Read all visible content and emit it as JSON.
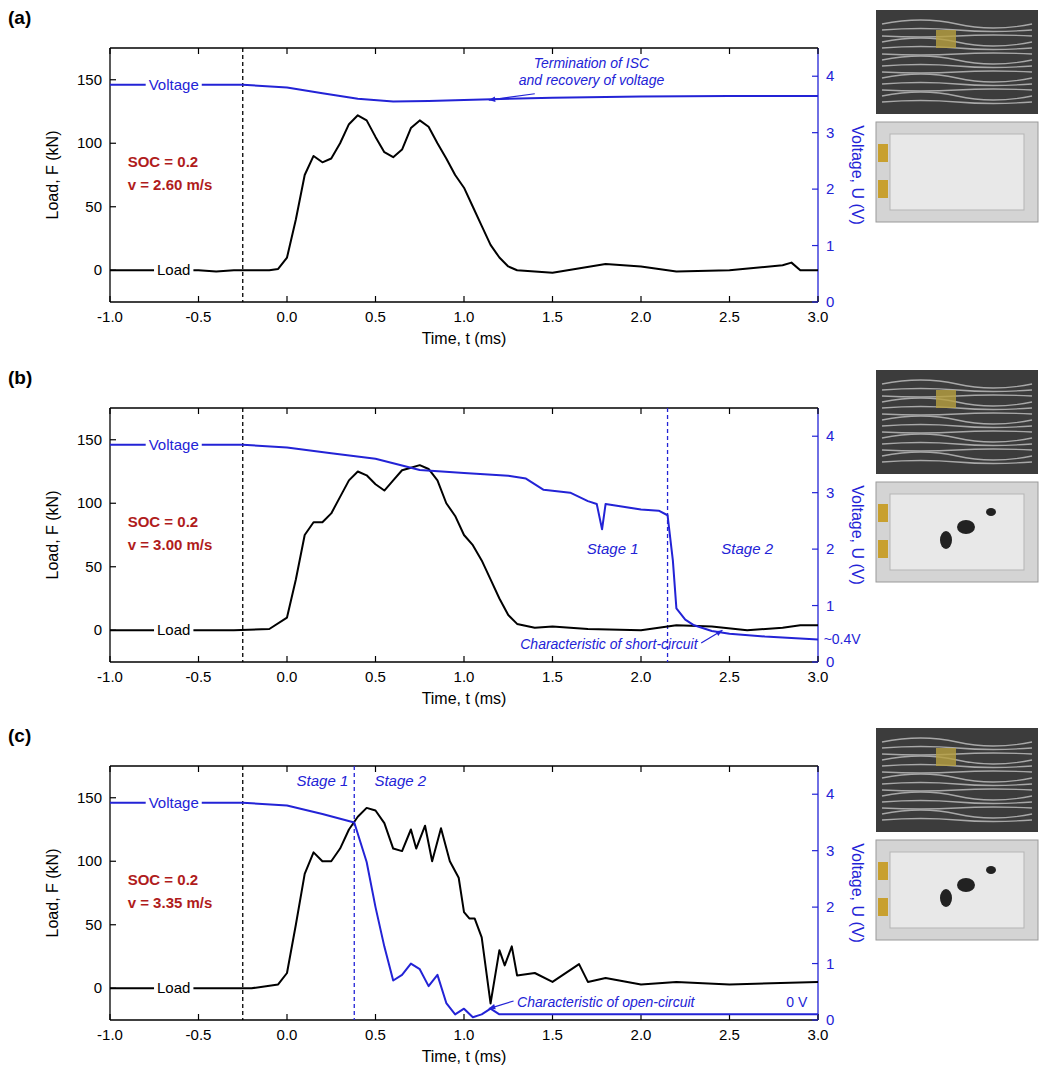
{
  "chart_data": [
    {
      "type": "line",
      "title": "(a)",
      "xlabel": "Time, t (ms)",
      "ylabel": "Load, F (kN)",
      "y2label": "Voltage, U (V)",
      "xlim": [
        -1,
        3
      ],
      "xticks": [
        {
          "value": -1,
          "label": "-1.0"
        },
        -0.5,
        {
          "value": 0,
          "label": "0.0"
        },
        0.5,
        {
          "value": 1,
          "label": "1.0"
        },
        1.5,
        {
          "value": 2,
          "label": "2.0"
        },
        2.5,
        {
          "value": 3,
          "label": "3.0"
        }
      ],
      "ylim": [
        -25,
        175
      ],
      "yticks": [
        0,
        50,
        100,
        150
      ],
      "y2lim": [
        0,
        4.5
      ],
      "y2ticks": [
        0,
        1,
        2,
        3,
        4
      ],
      "series": [
        {
          "name": "Load",
          "color": "#000000",
          "x": [
            -1,
            -0.5,
            -0.4,
            -0.3,
            -0.1,
            -0.05,
            0,
            0.05,
            0.1,
            0.15,
            0.2,
            0.25,
            0.3,
            0.35,
            0.4,
            0.45,
            0.5,
            0.55,
            0.6,
            0.65,
            0.7,
            0.75,
            0.8,
            0.85,
            0.9,
            0.95,
            1.0,
            1.05,
            1.1,
            1.15,
            1.2,
            1.25,
            1.3,
            1.5,
            1.8,
            2.0,
            2.2,
            2.5,
            2.8,
            2.85,
            2.9,
            3.0
          ],
          "values": [
            0,
            0,
            -1,
            0,
            0,
            1,
            10,
            40,
            75,
            90,
            85,
            88,
            100,
            115,
            122,
            118,
            105,
            93,
            89,
            95,
            112,
            118,
            113,
            100,
            88,
            75,
            65,
            50,
            35,
            20,
            10,
            3,
            0,
            -2,
            5,
            3,
            -1,
            0,
            4,
            6,
            0,
            0
          ]
        },
        {
          "name": "Voltage",
          "color": "#2323d6",
          "axis": "y2",
          "x": [
            -1,
            -0.25,
            0,
            0.2,
            0.4,
            0.6,
            0.8,
            1.0,
            1.5,
            2.0,
            2.5,
            3.0
          ],
          "values": [
            3.85,
            3.85,
            3.8,
            3.7,
            3.6,
            3.55,
            3.56,
            3.58,
            3.62,
            3.64,
            3.65,
            3.65
          ]
        }
      ],
      "vlines": [
        {
          "x": -0.25,
          "color": "#000000",
          "line_style": "dashed"
        }
      ],
      "annotations": [
        {
          "text": "SOC = 0.2",
          "color": "#b01c1c"
        },
        {
          "text": "v = 2.60 m/s",
          "color": "#b01c1c"
        },
        {
          "text": "Termination of ISC\nand recovery of voltage",
          "color": "#2323d6"
        }
      ]
    },
    {
      "type": "line",
      "title": "(b)",
      "xlabel": "Time, t (ms)",
      "ylabel": "Load, F (kN)",
      "y2label": "Voltage, U (V)",
      "xlim": [
        -1,
        3
      ],
      "xticks": [
        {
          "value": -1,
          "label": "-1.0"
        },
        -0.5,
        {
          "value": 0,
          "label": "0.0"
        },
        0.5,
        {
          "value": 1,
          "label": "1.0"
        },
        1.5,
        {
          "value": 2,
          "label": "2.0"
        },
        2.5,
        {
          "value": 3,
          "label": "3.0"
        }
      ],
      "ylim": [
        -25,
        175
      ],
      "yticks": [
        0,
        50,
        100,
        150
      ],
      "y2lim": [
        0,
        4.5
      ],
      "y2ticks": [
        0,
        1,
        2,
        3,
        4
      ],
      "series": [
        {
          "name": "Load",
          "color": "#000000",
          "x": [
            -1,
            -0.3,
            -0.1,
            0,
            0.05,
            0.1,
            0.15,
            0.2,
            0.25,
            0.3,
            0.35,
            0.4,
            0.45,
            0.5,
            0.55,
            0.6,
            0.65,
            0.7,
            0.75,
            0.8,
            0.85,
            0.9,
            0.95,
            1.0,
            1.05,
            1.1,
            1.15,
            1.2,
            1.25,
            1.3,
            1.4,
            1.5,
            1.7,
            2.0,
            2.2,
            2.4,
            2.6,
            2.8,
            2.9,
            3.0
          ],
          "values": [
            0,
            0,
            1,
            10,
            40,
            75,
            85,
            85,
            92,
            105,
            118,
            125,
            122,
            115,
            110,
            118,
            126,
            128,
            130,
            127,
            118,
            100,
            90,
            75,
            67,
            55,
            40,
            25,
            12,
            5,
            2,
            3,
            1,
            0,
            4,
            3,
            0,
            2,
            4,
            4
          ]
        },
        {
          "name": "Voltage",
          "color": "#2323d6",
          "axis": "y2",
          "x": [
            -1,
            -0.25,
            0,
            0.25,
            0.5,
            0.75,
            1.0,
            1.25,
            1.35,
            1.45,
            1.6,
            1.7,
            1.75,
            1.78,
            1.8,
            1.9,
            2.0,
            2.1,
            2.15,
            2.18,
            2.2,
            2.25,
            2.3,
            2.4,
            2.5,
            2.7,
            3.0
          ],
          "values": [
            3.85,
            3.85,
            3.8,
            3.7,
            3.6,
            3.4,
            3.35,
            3.3,
            3.25,
            3.05,
            3.0,
            2.85,
            2.8,
            2.35,
            2.8,
            2.75,
            2.7,
            2.68,
            2.6,
            1.8,
            0.95,
            0.75,
            0.65,
            0.55,
            0.5,
            0.45,
            0.4
          ]
        }
      ],
      "vlines": [
        {
          "x": -0.25,
          "color": "#000000",
          "line_style": "dashed"
        },
        {
          "x": 2.15,
          "color": "#2323d6",
          "line_style": "dashed"
        }
      ],
      "annotations": [
        {
          "text": "SOC = 0.2",
          "color": "#b01c1c"
        },
        {
          "text": "v = 3.00 m/s",
          "color": "#b01c1c"
        },
        {
          "text": "Stage 1",
          "color": "#2323d6"
        },
        {
          "text": "Stage 2",
          "color": "#2323d6"
        },
        {
          "text": "Characteristic of short-circuit",
          "color": "#2323d6"
        },
        {
          "text": "~0.4V",
          "color": "#2323d6"
        }
      ]
    },
    {
      "type": "line",
      "title": "(c)",
      "xlabel": "Time, t (ms)",
      "ylabel": "Load, F (kN)",
      "y2label": "Voltage, U (V)",
      "xlim": [
        -1,
        3
      ],
      "xticks": [
        {
          "value": -1,
          "label": "-1.0"
        },
        -0.5,
        {
          "value": 0,
          "label": "0.0"
        },
        0.5,
        {
          "value": 1,
          "label": "1.0"
        },
        1.5,
        {
          "value": 2,
          "label": "2.0"
        },
        2.5,
        {
          "value": 3,
          "label": "3.0"
        }
      ],
      "ylim": [
        -25,
        175
      ],
      "yticks": [
        0,
        50,
        100,
        150
      ],
      "y2lim": [
        0,
        4.5
      ],
      "y2ticks": [
        0,
        1,
        2,
        3,
        4
      ],
      "series": [
        {
          "name": "Load",
          "color": "#000000",
          "x": [
            -1,
            -0.2,
            -0.05,
            0,
            0.05,
            0.1,
            0.15,
            0.2,
            0.25,
            0.3,
            0.35,
            0.4,
            0.45,
            0.5,
            0.55,
            0.6,
            0.65,
            0.7,
            0.73,
            0.78,
            0.82,
            0.87,
            0.92,
            0.97,
            1.0,
            1.03,
            1.06,
            1.1,
            1.15,
            1.2,
            1.23,
            1.27,
            1.3,
            1.4,
            1.5,
            1.65,
            1.7,
            1.8,
            2.0,
            2.2,
            2.5,
            3.0
          ],
          "values": [
            0,
            0,
            3,
            12,
            50,
            90,
            107,
            100,
            100,
            110,
            125,
            135,
            142,
            140,
            130,
            110,
            108,
            125,
            110,
            128,
            100,
            126,
            100,
            87,
            60,
            55,
            55,
            40,
            -12,
            30,
            18,
            33,
            10,
            12,
            5,
            19,
            5,
            8,
            3,
            5,
            3,
            5
          ]
        },
        {
          "name": "Voltage",
          "color": "#2323d6",
          "axis": "y2",
          "x": [
            -1,
            -0.25,
            0,
            0.2,
            0.38,
            0.45,
            0.5,
            0.55,
            0.6,
            0.65,
            0.7,
            0.75,
            0.8,
            0.85,
            0.9,
            0.95,
            1.0,
            1.05,
            1.1,
            1.15,
            1.2,
            1.5,
            3.0
          ],
          "values": [
            3.85,
            3.85,
            3.8,
            3.65,
            3.5,
            2.8,
            2.0,
            1.3,
            0.7,
            0.8,
            1.0,
            0.9,
            0.6,
            0.8,
            0.3,
            0.1,
            0.2,
            0.05,
            0.1,
            0.2,
            0.1,
            0.1,
            0.1
          ]
        }
      ],
      "vlines": [
        {
          "x": -0.25,
          "color": "#000000",
          "line_style": "dashed"
        },
        {
          "x": 0.38,
          "color": "#2323d6",
          "line_style": "dashed"
        }
      ],
      "annotations": [
        {
          "text": "SOC = 0.2",
          "color": "#b01c1c"
        },
        {
          "text": "v = 3.35 m/s",
          "color": "#b01c1c"
        },
        {
          "text": "Stage 1",
          "color": "#2323d6"
        },
        {
          "text": "Stage 2",
          "color": "#2323d6"
        },
        {
          "text": "Characteristic of open-circuit",
          "color": "#2323d6"
        },
        {
          "text": "0 V",
          "color": "#2323d6"
        }
      ]
    }
  ]
}
